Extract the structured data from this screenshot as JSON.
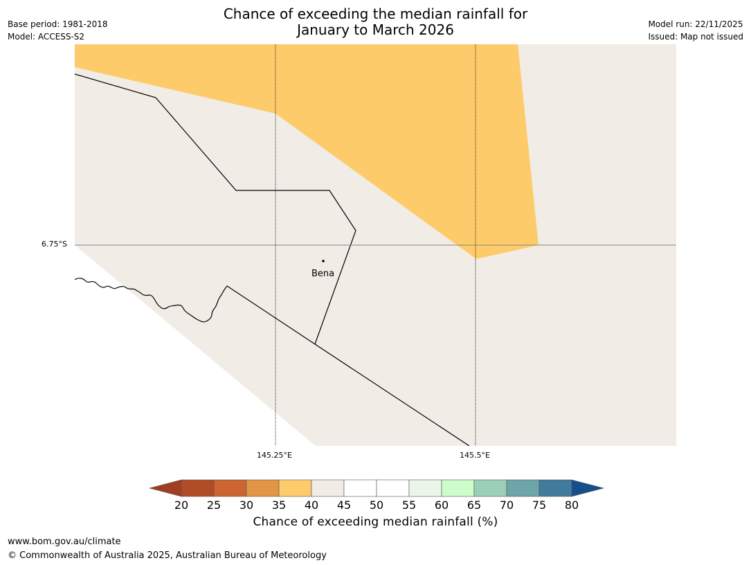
{
  "header": {
    "title_line1": "Chance of exceeding the median rainfall for",
    "title_line2": "January to March 2026",
    "base_period": "Base period: 1981-2018",
    "model": "Model: ACCESS-S2",
    "model_run": "Model run: 22/11/2025",
    "issued": "Issued: Map not issued"
  },
  "map": {
    "lat_label": "6.75°S",
    "lon_labels": [
      "145.25°E",
      "145.5°E"
    ],
    "place": "Bena",
    "colors": {
      "band_35_40": "#fdcb69",
      "band_40_45": "#f1ece6",
      "sea": "#ffffff"
    }
  },
  "colorbar": {
    "ticks": [
      "20",
      "25",
      "30",
      "35",
      "40",
      "45",
      "50",
      "55",
      "60",
      "65",
      "70",
      "75",
      "80"
    ],
    "colors": [
      "#a33d22",
      "#b14d26",
      "#cc6530",
      "#e39546",
      "#fdcb69",
      "#f1ece6",
      "#ffffff",
      "#ffffff",
      "#eaf6e8",
      "#ccfdcb",
      "#9ccfb8",
      "#6ea5aa",
      "#417b9b",
      "#154f8b"
    ],
    "label": "Chance of exceeding median rainfall (%)"
  },
  "footer": {
    "url": "www.bom.gov.au/climate",
    "copyright": "© Commonwealth of Australia 2025, Australian Bureau of Meteorology"
  }
}
